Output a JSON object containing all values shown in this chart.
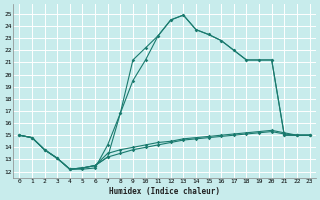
{
  "xlabel": "Humidex (Indice chaleur)",
  "bg_color": "#c8ecec",
  "grid_color": "#ffffff",
  "line_color": "#1a7a6e",
  "xlim": [
    -0.5,
    23.5
  ],
  "ylim": [
    11.5,
    25.8
  ],
  "xticks": [
    0,
    1,
    2,
    3,
    4,
    5,
    6,
    7,
    8,
    9,
    10,
    11,
    12,
    13,
    14,
    15,
    16,
    17,
    18,
    19,
    20,
    21,
    22,
    23
  ],
  "yticks": [
    12,
    13,
    14,
    15,
    16,
    17,
    18,
    19,
    20,
    21,
    22,
    23,
    24,
    25
  ],
  "line1_x": [
    0,
    1,
    2,
    3,
    4,
    5,
    6,
    7,
    8,
    9,
    10,
    11,
    12,
    13,
    14,
    15,
    16,
    17,
    18,
    19,
    20,
    21,
    22,
    23
  ],
  "line1_y": [
    15.0,
    14.8,
    13.8,
    13.1,
    12.2,
    12.2,
    12.3,
    14.2,
    16.8,
    21.2,
    22.2,
    23.2,
    24.5,
    24.9,
    23.7,
    23.3,
    22.8,
    22.0,
    21.2,
    21.2,
    21.2,
    15.0,
    15.0,
    15.0
  ],
  "line2_x": [
    0,
    1,
    2,
    3,
    4,
    5,
    6,
    7,
    8,
    9,
    10,
    11,
    12,
    13,
    14,
    15,
    16,
    17,
    18,
    19,
    20,
    21,
    22,
    23
  ],
  "line2_y": [
    15.0,
    14.8,
    13.8,
    13.1,
    12.2,
    12.3,
    12.5,
    13.2,
    16.8,
    19.5,
    21.2,
    23.2,
    24.5,
    24.9,
    23.7,
    23.3,
    22.8,
    22.0,
    21.2,
    21.2,
    21.2,
    15.0,
    15.0,
    15.0
  ],
  "line3_x": [
    0,
    1,
    2,
    3,
    4,
    5,
    6,
    7,
    8,
    9,
    10,
    11,
    12,
    13,
    14,
    15,
    16,
    17,
    18,
    19,
    20,
    21,
    22,
    23
  ],
  "line3_y": [
    15.0,
    14.8,
    13.8,
    13.1,
    12.2,
    12.3,
    12.5,
    13.2,
    13.5,
    13.8,
    14.0,
    14.2,
    14.4,
    14.6,
    14.7,
    14.8,
    14.9,
    15.0,
    15.1,
    15.2,
    15.3,
    15.1,
    15.0,
    15.0
  ],
  "line4_x": [
    0,
    1,
    2,
    3,
    4,
    5,
    6,
    7,
    8,
    9,
    10,
    11,
    12,
    13,
    14,
    15,
    16,
    17,
    18,
    19,
    20,
    21,
    22,
    23
  ],
  "line4_y": [
    15.0,
    14.8,
    13.8,
    13.1,
    12.2,
    12.3,
    12.5,
    13.5,
    13.8,
    14.0,
    14.2,
    14.4,
    14.5,
    14.7,
    14.8,
    14.9,
    15.0,
    15.1,
    15.2,
    15.3,
    15.4,
    15.2,
    15.0,
    15.0
  ]
}
